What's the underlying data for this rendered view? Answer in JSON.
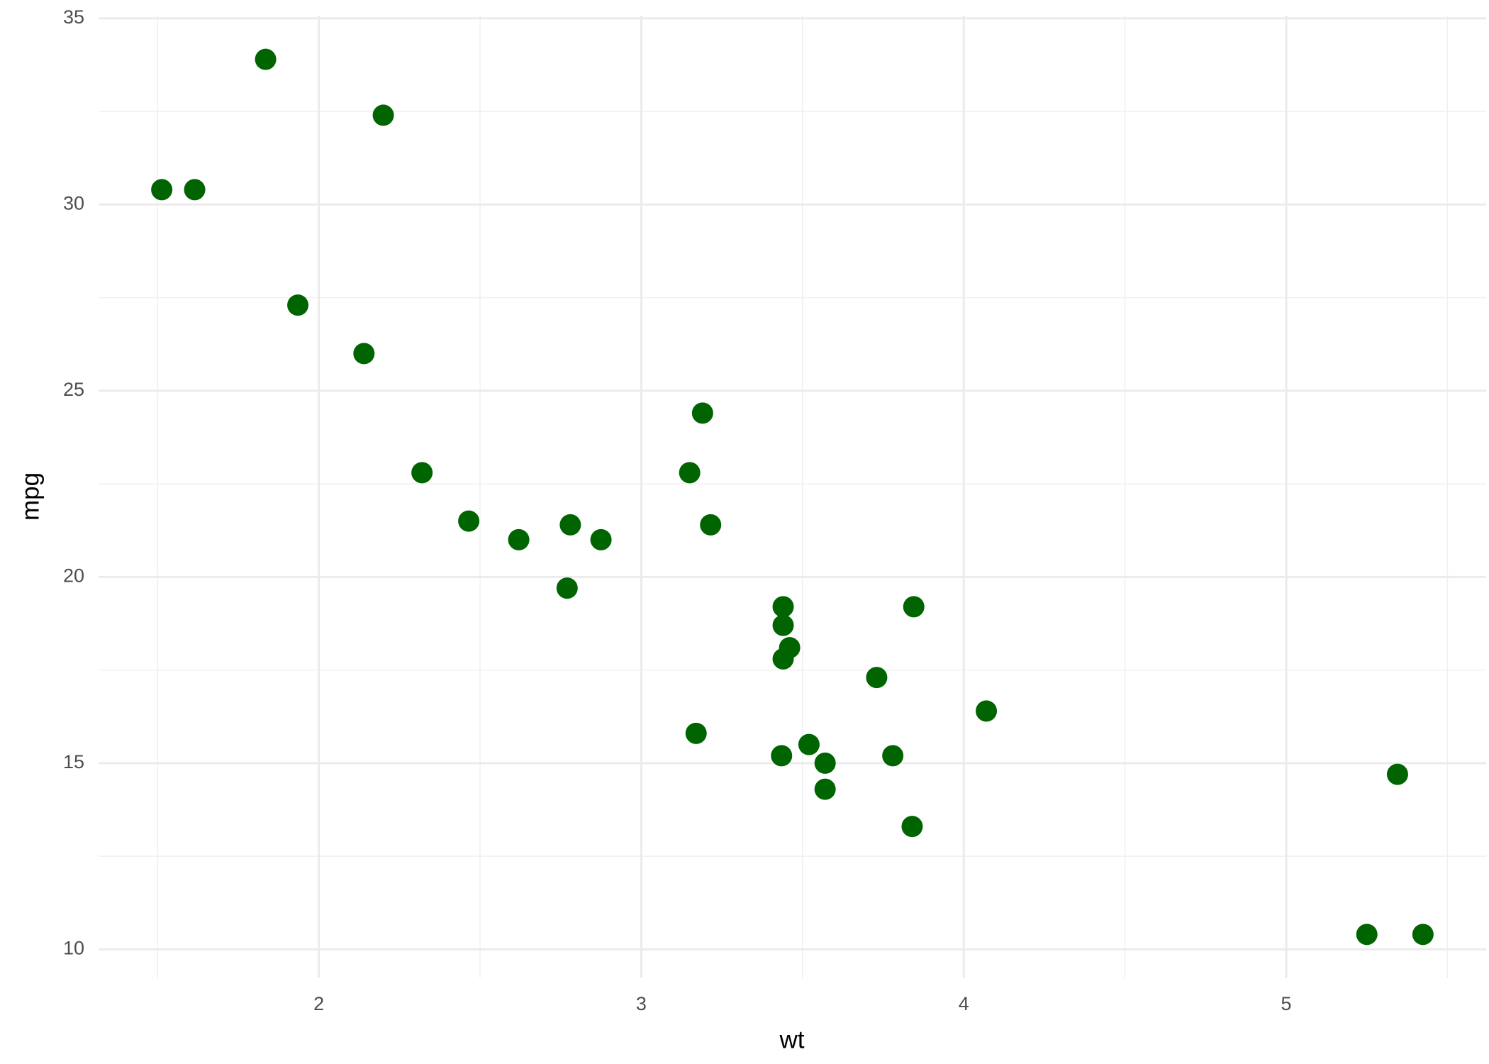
{
  "chart_data": {
    "type": "scatter",
    "x_label": "wt",
    "y_label": "mpg",
    "x": [
      2.62,
      2.875,
      2.32,
      3.215,
      3.44,
      3.46,
      3.57,
      3.19,
      3.15,
      3.44,
      3.44,
      4.07,
      3.73,
      3.78,
      5.25,
      5.424,
      5.345,
      2.2,
      1.615,
      1.835,
      2.465,
      3.52,
      3.435,
      3.84,
      3.845,
      1.935,
      2.14,
      1.513,
      3.17,
      2.77,
      3.57,
      2.78
    ],
    "values": [
      21,
      21,
      22.8,
      21.4,
      18.7,
      18.1,
      14.3,
      24.4,
      22.8,
      19.2,
      17.8,
      16.4,
      17.3,
      15.2,
      10.4,
      10.4,
      14.7,
      32.4,
      30.4,
      33.9,
      21.5,
      15.5,
      15.2,
      13.3,
      19.2,
      27.3,
      26,
      30.4,
      15.8,
      19.7,
      15,
      21.4
    ],
    "color": "#006400",
    "xlim": [
      1.317,
      5.62
    ],
    "ylim": [
      9.225,
      35.075
    ],
    "xticks": [
      2,
      3,
      4,
      5
    ],
    "yticks": [
      10,
      15,
      20,
      25,
      30,
      35
    ],
    "grid": true
  }
}
